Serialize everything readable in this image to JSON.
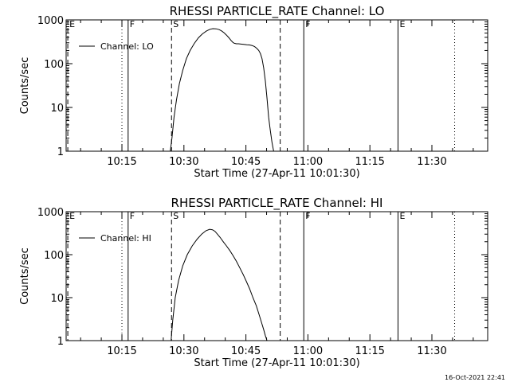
{
  "footer": {
    "stamp": "16-Oct-2021 22:41"
  },
  "chart_data": [
    {
      "type": "line",
      "title": "RHESSI PARTICLE_RATE Channel: LO",
      "xlabel": "Start Time (27-Apr-11 10:01:30)",
      "ylabel": "Counts/sec",
      "yscale": "log",
      "ylim": [
        1,
        1000
      ],
      "xlim_minutes": [
        0,
        102
      ],
      "x_ticks": [
        {
          "m": 13.5,
          "label": "10:15"
        },
        {
          "m": 28.5,
          "label": "10:30"
        },
        {
          "m": 43.5,
          "label": "10:45"
        },
        {
          "m": 58.5,
          "label": "11:00"
        },
        {
          "m": 73.5,
          "label": "11:15"
        },
        {
          "m": 88.5,
          "label": "11:30"
        }
      ],
      "y_ticks": [
        {
          "v": 1,
          "label": "1"
        },
        {
          "v": 10,
          "label": "10"
        },
        {
          "v": 100,
          "label": "100"
        },
        {
          "v": 1000,
          "label": "1000"
        }
      ],
      "legend": {
        "label": "Channel: LO",
        "position": "top-left"
      },
      "markers": [
        {
          "m": 0.4,
          "style": "dashed",
          "label": "E"
        },
        {
          "m": 13.5,
          "style": "dotted",
          "label": ""
        },
        {
          "m": 15.0,
          "style": "solid",
          "label": "F"
        },
        {
          "m": 25.5,
          "style": "dashed",
          "label": "S"
        },
        {
          "m": 51.8,
          "style": "dashed",
          "label": ""
        },
        {
          "m": 57.5,
          "style": "solid",
          "label": "F"
        },
        {
          "m": 80.3,
          "style": "solid",
          "label": "E"
        },
        {
          "m": 94.0,
          "style": "dotted",
          "label": ""
        }
      ],
      "series": [
        {
          "name": "Channel: LO",
          "x": [
            25.2,
            25.6,
            26.1,
            26.7,
            27.4,
            28.2,
            29.1,
            30.0,
            31.0,
            32.0,
            33.0,
            34.0,
            34.8,
            35.5,
            36.3,
            37.0,
            37.6,
            38.2,
            38.8,
            39.4,
            39.9,
            40.3,
            40.6,
            40.9,
            41.2,
            41.7,
            42.3,
            43.0,
            43.7,
            44.4,
            45.0,
            45.6,
            46.1,
            46.6,
            47.0,
            47.4,
            47.8,
            48.2,
            48.6,
            49.0,
            49.4,
            49.8,
            50.2
          ],
          "y": [
            1,
            2,
            6,
            15,
            35,
            70,
            130,
            200,
            290,
            390,
            480,
            560,
            610,
            630,
            625,
            600,
            560,
            510,
            450,
            390,
            340,
            310,
            295,
            290,
            285,
            285,
            280,
            275,
            270,
            268,
            260,
            245,
            225,
            200,
            170,
            130,
            80,
            40,
            16,
            6,
            3,
            1.6,
            1
          ]
        }
      ]
    },
    {
      "type": "line",
      "title": "RHESSI PARTICLE_RATE Channel: HI",
      "xlabel": "Start Time (27-Apr-11 10:01:30)",
      "ylabel": "Counts/sec",
      "yscale": "log",
      "ylim": [
        1,
        1000
      ],
      "xlim_minutes": [
        0,
        102
      ],
      "x_ticks": [
        {
          "m": 13.5,
          "label": "10:15"
        },
        {
          "m": 28.5,
          "label": "10:30"
        },
        {
          "m": 43.5,
          "label": "10:45"
        },
        {
          "m": 58.5,
          "label": "11:00"
        },
        {
          "m": 73.5,
          "label": "11:15"
        },
        {
          "m": 88.5,
          "label": "11:30"
        }
      ],
      "y_ticks": [
        {
          "v": 1,
          "label": "1"
        },
        {
          "v": 10,
          "label": "10"
        },
        {
          "v": 100,
          "label": "100"
        },
        {
          "v": 1000,
          "label": "1000"
        }
      ],
      "legend": {
        "label": "Channel: HI",
        "position": "top-left"
      },
      "markers": [
        {
          "m": 0.4,
          "style": "dashed",
          "label": "E"
        },
        {
          "m": 13.5,
          "style": "dotted",
          "label": ""
        },
        {
          "m": 15.0,
          "style": "solid",
          "label": "F"
        },
        {
          "m": 25.5,
          "style": "dashed",
          "label": "S"
        },
        {
          "m": 51.8,
          "style": "dashed",
          "label": ""
        },
        {
          "m": 57.5,
          "style": "solid",
          "label": "F"
        },
        {
          "m": 80.3,
          "style": "solid",
          "label": "E"
        },
        {
          "m": 94.0,
          "style": "dotted",
          "label": ""
        }
      ],
      "series": [
        {
          "name": "Channel: HI",
          "x": [
            25.4,
            25.8,
            26.4,
            27.2,
            28.2,
            29.3,
            30.5,
            31.7,
            32.8,
            33.8,
            34.7,
            35.4,
            36.0,
            36.6,
            37.3,
            38.0,
            38.8,
            39.6,
            40.4,
            41.2,
            42.0,
            42.8,
            43.6,
            44.4,
            45.2,
            46.0,
            46.7,
            47.3,
            47.8,
            48.2,
            48.6
          ],
          "y": [
            1,
            3,
            10,
            25,
            55,
            100,
            160,
            230,
            300,
            360,
            390,
            380,
            350,
            300,
            250,
            200,
            160,
            125,
            95,
            70,
            50,
            35,
            24,
            16,
            10,
            6.5,
            4,
            2.6,
            1.8,
            1.3,
            1
          ]
        }
      ]
    }
  ]
}
